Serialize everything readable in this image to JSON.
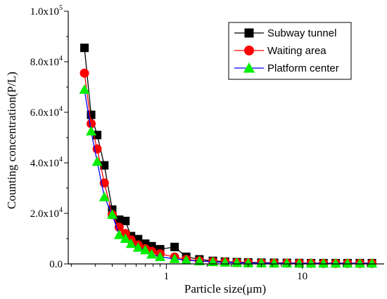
{
  "chart_data": {
    "type": "line",
    "xlabel": "Particle size(μm)",
    "ylabel": "Counting concentration(P/L)",
    "x_scale": "log",
    "xlim": [
      0.19,
      40
    ],
    "ylim": [
      0,
      100000
    ],
    "x_ticks": [
      1,
      10
    ],
    "x_tick_labels": [
      "1",
      "10"
    ],
    "y_ticks": [
      0,
      20000,
      40000,
      60000,
      80000,
      100000
    ],
    "y_tick_labels": [
      {
        "base": "0.0",
        "exp": ""
      },
      {
        "base": "2.0x10",
        "exp": "4"
      },
      {
        "base": "4.0x10",
        "exp": "4"
      },
      {
        "base": "6.0x10",
        "exp": "4"
      },
      {
        "base": "8.0x10",
        "exp": "4"
      },
      {
        "base": "1.0x10",
        "exp": "5"
      }
    ],
    "legend_position": "top-right",
    "series": [
      {
        "name": "Subway tunnel",
        "color": "#000000",
        "marker": "square",
        "x": [
          0.25,
          0.28,
          0.31,
          0.35,
          0.4,
          0.45,
          0.5,
          0.55,
          0.62,
          0.7,
          0.78,
          0.9,
          1.15,
          1.4,
          1.75,
          2.2,
          2.7,
          3.3,
          4.0,
          5.0,
          6.2,
          7.7,
          9.5,
          11.6,
          14.3,
          17.6,
          21.5,
          26.5,
          32.5
        ],
        "y": [
          85500,
          59000,
          51000,
          39000,
          21500,
          17500,
          17000,
          11000,
          9800,
          8000,
          7000,
          5800,
          6700,
          2800,
          1800,
          1200,
          900,
          700,
          600,
          500,
          450,
          400,
          350,
          300,
          300,
          300,
          300,
          300,
          300
        ]
      },
      {
        "name": "Waiting area",
        "color": "#ff0000",
        "marker": "circle",
        "x": [
          0.25,
          0.28,
          0.31,
          0.35,
          0.4,
          0.45,
          0.5,
          0.55,
          0.62,
          0.7,
          0.78,
          0.9,
          1.15,
          1.4,
          1.75,
          2.2,
          2.7,
          3.3,
          4.0,
          5.0,
          6.2,
          7.7,
          9.5,
          11.6,
          14.3,
          17.6,
          21.5,
          26.5,
          32.5
        ],
        "y": [
          75500,
          55500,
          45500,
          32000,
          19500,
          14500,
          12000,
          9500,
          7500,
          6000,
          5000,
          4000,
          2700,
          1800,
          1200,
          900,
          700,
          500,
          400,
          350,
          300,
          300,
          250,
          250,
          200,
          200,
          200,
          200,
          200
        ]
      },
      {
        "name": "Platform center",
        "color": "#00ee00",
        "marker": "triangle",
        "line_color": "#0000ff",
        "x": [
          0.25,
          0.28,
          0.31,
          0.35,
          0.4,
          0.45,
          0.5,
          0.55,
          0.62,
          0.7,
          0.78,
          0.9,
          1.15,
          1.4,
          1.75,
          2.2,
          2.7,
          3.3,
          4.0,
          5.0,
          6.2,
          7.7,
          9.5,
          11.6,
          14.3,
          17.6,
          21.5,
          26.5,
          32.5
        ],
        "y": [
          69000,
          52500,
          40500,
          26500,
          19500,
          11500,
          10000,
          8000,
          6500,
          5500,
          3800,
          2800,
          2000,
          1500,
          1100,
          800,
          600,
          450,
          350,
          300,
          250,
          250,
          200,
          200,
          200,
          200,
          200,
          200,
          200
        ]
      }
    ]
  }
}
